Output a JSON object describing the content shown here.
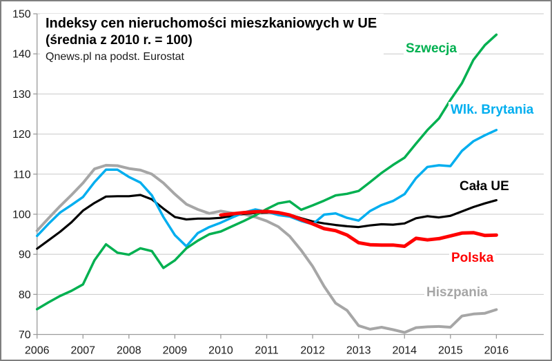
{
  "chart_data": {
    "type": "line",
    "title": "Indeksy cen nieruchomości mieszkaniowych w UE",
    "subtitle": "(średnia z 2010 r. = 100)",
    "source": "Qnews.pl na podst. Eurostat",
    "x_ticks": [
      2006,
      2007,
      2008,
      2009,
      2010,
      2011,
      2012,
      2013,
      2014,
      2015,
      2016
    ],
    "y_ticks": [
      70,
      80,
      90,
      100,
      110,
      120,
      130,
      140,
      150
    ],
    "ylim": [
      70,
      150
    ],
    "xlim": [
      2006,
      2017
    ],
    "grid": true,
    "legend_position": "inline-labels",
    "axis_color": "#9a9a9a",
    "grid_color": "#c8c8c8",
    "tick_label_color": "#1a1a1a",
    "x_unit": "year",
    "x_step": 0.25,
    "series": [
      {
        "id": "hiszpania",
        "name": "Hiszpania",
        "color": "#a6a6a6",
        "width": 4,
        "start": 2006,
        "values": [
          95.9,
          99.0,
          102.0,
          104.8,
          107.8,
          111.3,
          112.2,
          112.1,
          111.4,
          111.0,
          110.0,
          107.8,
          105.0,
          102.5,
          101.2,
          100.2,
          100.8,
          100.3,
          100.0,
          99.3,
          98.3,
          96.9,
          94.5,
          91.0,
          87.0,
          82.0,
          77.8,
          76.0,
          72.2,
          71.3,
          71.8,
          71.2,
          70.5,
          71.7,
          71.9,
          72.0,
          71.8,
          74.6,
          75.1,
          75.3,
          76.2
        ]
      },
      {
        "id": "cala-ue",
        "name": "Cała UE",
        "color": "#000000",
        "width": 3.2,
        "start": 2006,
        "values": [
          91.4,
          93.5,
          95.6,
          98.0,
          100.9,
          102.8,
          104.4,
          104.5,
          104.5,
          104.8,
          103.7,
          101.4,
          99.3,
          98.7,
          98.9,
          98.9,
          99.1,
          99.6,
          100.1,
          100.3,
          100.4,
          100.4,
          99.9,
          99.0,
          98.2,
          97.7,
          97.3,
          97.0,
          96.8,
          97.2,
          97.5,
          97.4,
          97.7,
          99.0,
          99.5,
          99.2,
          99.6,
          100.7,
          101.8,
          102.7,
          103.5
        ]
      },
      {
        "id": "wlk-brytania",
        "name": "Wlk. Brytania",
        "color": "#00aeef",
        "width": 3.5,
        "start": 2006,
        "values": [
          94.6,
          97.6,
          100.4,
          102.3,
          104.3,
          108.0,
          111.1,
          111.1,
          109.3,
          107.9,
          104.7,
          99.3,
          94.8,
          92.0,
          95.3,
          96.8,
          97.9,
          99.2,
          100.4,
          101.2,
          100.6,
          99.8,
          99.4,
          98.3,
          97.5,
          99.9,
          100.2,
          99.1,
          98.4,
          100.8,
          102.3,
          103.3,
          105.0,
          109.0,
          111.8,
          112.2,
          112.0,
          115.8,
          118.2,
          119.7,
          121.0
        ]
      },
      {
        "id": "szwecja",
        "name": "Szwecja",
        "color": "#00b050",
        "width": 3.5,
        "start": 2006,
        "values": [
          76.3,
          78.0,
          79.6,
          80.9,
          82.5,
          88.5,
          92.5,
          90.4,
          89.9,
          91.5,
          90.8,
          86.6,
          88.5,
          91.5,
          93.4,
          95.0,
          95.7,
          97.0,
          98.3,
          99.7,
          101.3,
          102.7,
          103.2,
          101.1,
          102.2,
          103.4,
          104.7,
          105.1,
          105.8,
          108.0,
          110.3,
          112.3,
          114.1,
          117.6,
          121.0,
          123.9,
          128.5,
          132.7,
          138.5,
          142.2,
          144.8
        ]
      },
      {
        "id": "polska",
        "name": "Polska",
        "color": "#ff0000",
        "width": 5,
        "start": 2010,
        "values": [
          99.8,
          100.1,
          100.4,
          100.6,
          100.7,
          100.4,
          99.8,
          98.7,
          97.6,
          96.4,
          95.9,
          94.8,
          92.9,
          92.4,
          92.3,
          92.3,
          92.0,
          94.0,
          93.6,
          93.9,
          94.6,
          95.3,
          95.4,
          94.7,
          94.8
        ]
      }
    ]
  }
}
